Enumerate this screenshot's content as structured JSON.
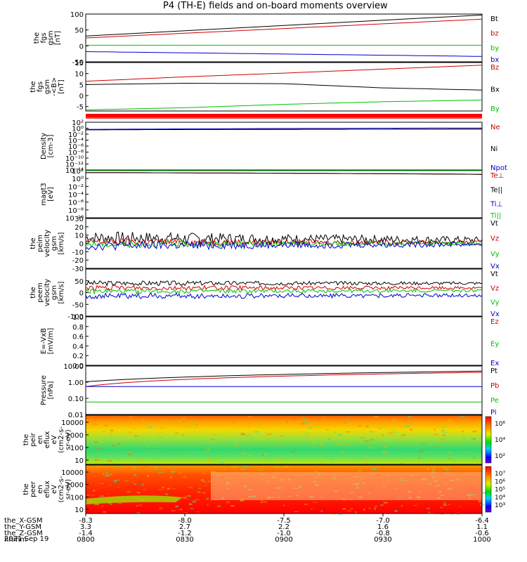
{
  "title": "P4 (TH-E) fields and on-board moments overview",
  "time_axis": {
    "ticks": [
      "0800",
      "0830",
      "0900",
      "0930",
      "1000"
    ],
    "date": "2021 Sep 19",
    "rows": [
      {
        "label": "the_X-GSM",
        "values": [
          "-8.3",
          "-8.0",
          "-7.5",
          "-7.0",
          "-6.4"
        ]
      },
      {
        "label": "the_Y-GSM",
        "values": [
          "3.3",
          "2.7",
          "2.2",
          "1.6",
          "1.1"
        ]
      },
      {
        "label": "the_Z-GSM",
        "values": [
          "-1.4",
          "-1.2",
          "-1.0",
          "-0.8",
          "-0.6"
        ]
      },
      {
        "label": "hhmm",
        "values": [
          "0800",
          "0830",
          "0900",
          "0930",
          "1000"
        ]
      }
    ]
  },
  "colors": {
    "black": "#000000",
    "red": "#d00000",
    "green": "#00c000",
    "blue": "#0000cc"
  },
  "chart_data": [
    {
      "type": "line",
      "ylabel": [
        "the",
        "fgs",
        "gsm",
        "[nT]"
      ],
      "ylim": [
        -50,
        100
      ],
      "yticks": [
        "100",
        "50",
        "0",
        "-50"
      ],
      "x": [
        "0800",
        "1000"
      ],
      "series": [
        {
          "name": "Bt",
          "color": "#000000",
          "values": [
            31,
            97
          ]
        },
        {
          "name": "bz",
          "color": "#d00000",
          "values": [
            25,
            84
          ]
        },
        {
          "name": "by",
          "color": "#00c000",
          "values": [
            2,
            2
          ]
        },
        {
          "name": "bx",
          "color": "#0000cc",
          "values": [
            -18,
            -33
          ]
        }
      ]
    },
    {
      "type": "line",
      "ylabel": [
        "the",
        "fgs",
        "gsm",
        "-<B>",
        "[nT]"
      ],
      "ylim": [
        -7,
        15
      ],
      "yticks": [
        "15",
        "10",
        "5",
        "0",
        "-5"
      ],
      "x": [
        "0800",
        "0830",
        "0900",
        "0930",
        "1000"
      ],
      "series": [
        {
          "name": "Bz",
          "color": "#d00000",
          "values": [
            6.5,
            8.5,
            10.2,
            12.0,
            13.8
          ]
        },
        {
          "name": "Bx",
          "color": "#000000",
          "values": [
            5.0,
            5.6,
            5.4,
            3.5,
            2.5
          ]
        },
        {
          "name": "By",
          "color": "#00c000",
          "values": [
            -6.5,
            -5.5,
            -4.0,
            -2.8,
            -2.0
          ]
        }
      ]
    },
    {
      "type": "line",
      "scale": "log",
      "ylabel": [
        "Density",
        "[cm-3]"
      ],
      "ylim": [
        1e-14,
        100
      ],
      "yticks": [
        "10²",
        "10⁰",
        "10⁻²",
        "10⁻⁴",
        "10⁻⁶",
        "10⁻⁸",
        "10⁻¹⁰",
        "10⁻¹²",
        "10⁻¹⁴"
      ],
      "x": [
        "0800",
        "1000"
      ],
      "series": [
        {
          "name": "Ne",
          "color": "#d00000",
          "values": [
            0.3,
            0.5
          ]
        },
        {
          "name": "Ni",
          "color": "#000000",
          "values": [
            0.3,
            0.5
          ]
        },
        {
          "name": "Npot",
          "color": "#0000cc",
          "values": [
            0.4,
            1.2
          ]
        }
      ]
    },
    {
      "type": "line",
      "scale": "log",
      "ylabel": [
        "magt3",
        "[eV]"
      ],
      "ylim": [
        1e-10,
        1000
      ],
      "yticks": [
        "10²",
        "10⁰",
        "10⁻²",
        "10⁻⁴",
        "10⁻⁶",
        "10⁻⁸",
        "10⁻¹⁰"
      ],
      "x": [
        "0800",
        "1000"
      ],
      "series": [
        {
          "name": "Te⊥",
          "color": "#d00000",
          "values": [
            300,
            100
          ]
        },
        {
          "name": "Te||",
          "color": "#000000",
          "values": [
            300,
            100
          ]
        },
        {
          "name": "Ti⊥",
          "color": "#0000cc",
          "values": [
            1000,
            1000
          ]
        },
        {
          "name": "Ti||",
          "color": "#00c000",
          "values": [
            1000,
            1000
          ]
        }
      ]
    },
    {
      "type": "line",
      "ylabel": [
        "the",
        "peim",
        "velocity",
        "gsm",
        "[km/s]"
      ],
      "ylim": [
        -30,
        30
      ],
      "yticks": [
        "30",
        "20",
        "10",
        "0",
        "-10",
        "-20",
        "-30"
      ],
      "x": [
        "0800",
        "1000"
      ],
      "series": [
        {
          "name": "Vt",
          "color": "#000000",
          "values": [
            7,
            4
          ]
        },
        {
          "name": "Vz",
          "color": "#d00000",
          "values": [
            2,
            1
          ]
        },
        {
          "name": "Vy",
          "color": "#00c000",
          "values": [
            -1,
            0
          ]
        },
        {
          "name": "Vx",
          "color": "#0000cc",
          "values": [
            -3,
            -1
          ]
        }
      ]
    },
    {
      "type": "line",
      "ylabel": [
        "the",
        "peem",
        "velocity",
        "gsm",
        "[km/s]"
      ],
      "ylim": [
        -100,
        100
      ],
      "yticks": [
        "50",
        "0",
        "-50",
        "-100"
      ],
      "x": [
        "0800",
        "1000"
      ],
      "series": [
        {
          "name": "Vt",
          "color": "#000000",
          "values": [
            40,
            40
          ]
        },
        {
          "name": "Vz",
          "color": "#d00000",
          "values": [
            20,
            20
          ]
        },
        {
          "name": "Vy",
          "color": "#00c000",
          "values": [
            5,
            8
          ]
        },
        {
          "name": "Vx",
          "color": "#0000cc",
          "values": [
            -15,
            -12
          ]
        }
      ]
    },
    {
      "type": "line",
      "ylabel": [
        "E=-VxB",
        "[mV/m]"
      ],
      "ylim": [
        0,
        1
      ],
      "yticks": [
        "1.0",
        "0.8",
        "0.6",
        "0.4",
        "0.2",
        "0.0"
      ],
      "x": [],
      "series": [
        {
          "name": "Ez",
          "color": "#d00000",
          "values": []
        },
        {
          "name": "Ey",
          "color": "#00c000",
          "values": []
        },
        {
          "name": "Ex",
          "color": "#0000cc",
          "values": []
        }
      ]
    },
    {
      "type": "line",
      "scale": "log",
      "ylabel": [
        "Pressure",
        "[nPa]"
      ],
      "ylim": [
        0.005,
        10
      ],
      "yticks": [
        "10.00",
        "1.00",
        "0.10",
        "0.01"
      ],
      "x": [
        "0800",
        "1000"
      ],
      "series": [
        {
          "name": "Pt",
          "color": "#000000",
          "values": [
            0.85,
            4.5
          ]
        },
        {
          "name": "Pb",
          "color": "#d00000",
          "values": [
            0.4,
            3.7
          ]
        },
        {
          "name": "Pe",
          "color": "#00c000",
          "values": [
            0.035,
            0.035
          ]
        },
        {
          "name": "Pi",
          "color": "#0000cc",
          "values": [
            0.4,
            0.4
          ]
        }
      ]
    },
    {
      "type": "heatmap",
      "ylabel": [
        "the",
        "peir",
        "en",
        "eflux",
        "eV",
        "(cm2-s-",
        "sr-eV)"
      ],
      "yticks": [
        "10000",
        "1000",
        "100",
        "10"
      ],
      "colorbar_label": "[eV/(cm²-s-sr-eV)] (All Qs)",
      "colorbar_ticks": [
        "10⁶",
        "10⁴",
        "10²"
      ]
    },
    {
      "type": "heatmap",
      "ylabel": [
        "the",
        "peer",
        "en",
        "eflux",
        "eV",
        "(cm2-s-",
        "sr-eV)"
      ],
      "yticks": [
        "10000",
        "1000",
        "100",
        "10"
      ],
      "colorbar_label": "[eV/(cm²-s-sr-eV)] (All Qs)",
      "colorbar_ticks": [
        "10⁷",
        "10⁶",
        "10⁵",
        "10⁴",
        "10³"
      ]
    }
  ]
}
